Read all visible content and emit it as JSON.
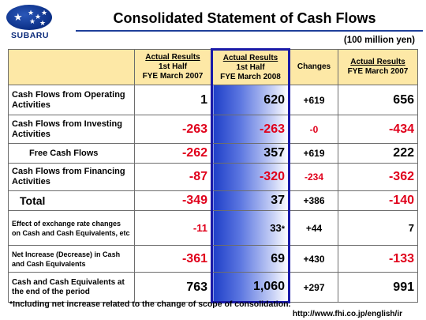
{
  "brand": {
    "name": "SUBARU"
  },
  "title": "Consolidated Statement of Cash Flows",
  "unit": "(100 million yen)",
  "columns": [
    {
      "line1": "Actual Results",
      "line2": "1st Half",
      "line3": "FYE March 2007"
    },
    {
      "line1": "Actual Results",
      "line2": "1st Half",
      "line3": "FYE March 2008"
    },
    {
      "line1": "Changes"
    },
    {
      "line1": "Actual Results",
      "line3": "FYE March 2007"
    }
  ],
  "rows": [
    {
      "label": "Cash Flows from Operating Activities",
      "h1_2007": "1",
      "h1_2008": "620",
      "change": "+619",
      "fy2007": "656"
    },
    {
      "label": "Cash Flows from Investing Activities",
      "h1_2007": "-263",
      "h1_2008": "-263",
      "change": "-0",
      "fy2007": "-434"
    },
    {
      "label": "Free Cash Flows",
      "h1_2007": "-262",
      "h1_2008": "357",
      "change": "+619",
      "fy2007": "222"
    },
    {
      "label": "Cash Flows from Financing Activities",
      "h1_2007": "-87",
      "h1_2008": "-320",
      "change": "-234",
      "fy2007": "-362"
    },
    {
      "label": "Total",
      "h1_2007": "-349",
      "h1_2008": "37",
      "change": "+386",
      "fy2007": "-140"
    },
    {
      "label": "Effect of exchange rate changes on Cash and Cash Equivalents, etc",
      "h1_2007": "-11",
      "h1_2008": "33",
      "h1_2008_mark": "*",
      "change": "+44",
      "fy2007": "7"
    },
    {
      "label": "Net Increase (Decrease) in Cash and Cash Equivalents",
      "h1_2007": "-361",
      "h1_2008": "69",
      "change": "+430",
      "fy2007": "-133"
    },
    {
      "label": "Cash and Cash Equivalents at the end of the period",
      "h1_2007": "763",
      "h1_2008": "1,060",
      "change": "+297",
      "fy2007": "991"
    }
  ],
  "footnote": "*Including net increase related to the change of scope of consolidation.",
  "url": "http://www.fhi.co.jp/english/ir",
  "colors": {
    "negative": "#e0001b",
    "header_fill": "#fde8a6",
    "highlight": "#1f3fc8"
  }
}
